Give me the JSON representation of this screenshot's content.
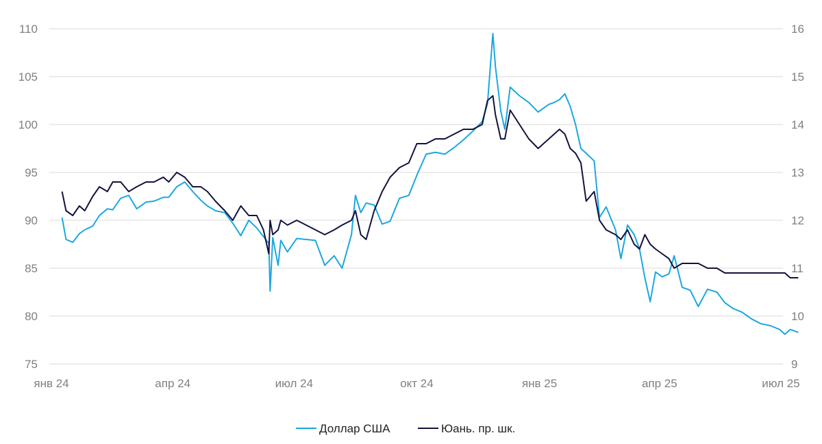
{
  "chart_data": {
    "type": "line",
    "title": "",
    "xlabel": "",
    "ylabel": "",
    "x_ticks": [
      "янв 24",
      "апр 24",
      "июл 24",
      "окт 24",
      "янв 25",
      "апр 25",
      "июл 25"
    ],
    "y_left": {
      "min": 75,
      "max": 110,
      "ticks": [
        75,
        80,
        85,
        90,
        95,
        100,
        105,
        110
      ]
    },
    "y_right": {
      "min": 9,
      "max": 16,
      "ticks": [
        9,
        10,
        11,
        12,
        13,
        14,
        15,
        16
      ]
    },
    "grid": true,
    "legend_position": "bottom-center",
    "series": [
      {
        "name": "Доллар США",
        "axis": "left",
        "color": "#1aa7e0",
        "x": [
          "2024-01-09",
          "2024-01-12",
          "2024-01-17",
          "2024-01-22",
          "2024-01-26",
          "2024-02-01",
          "2024-02-06",
          "2024-02-12",
          "2024-02-16",
          "2024-02-22",
          "2024-02-28",
          "2024-03-05",
          "2024-03-12",
          "2024-03-18",
          "2024-03-25",
          "2024-03-29",
          "2024-04-04",
          "2024-04-10",
          "2024-04-16",
          "2024-04-22",
          "2024-04-27",
          "2024-05-03",
          "2024-05-10",
          "2024-05-16",
          "2024-05-22",
          "2024-05-28",
          "2024-06-03",
          "2024-06-08",
          "2024-06-12",
          "2024-06-13",
          "2024-06-15",
          "2024-06-19",
          "2024-06-21",
          "2024-06-26",
          "2024-07-03",
          "2024-07-10",
          "2024-07-17",
          "2024-07-24",
          "2024-07-31",
          "2024-08-06",
          "2024-08-13",
          "2024-08-16",
          "2024-08-20",
          "2024-08-24",
          "2024-08-30",
          "2024-09-05",
          "2024-09-11",
          "2024-09-18",
          "2024-09-25",
          "2024-10-01",
          "2024-10-08",
          "2024-10-15",
          "2024-10-22",
          "2024-10-29",
          "2024-11-05",
          "2024-11-12",
          "2024-11-19",
          "2024-11-23",
          "2024-11-27",
          "2024-11-29",
          "2024-12-03",
          "2024-12-06",
          "2024-12-10",
          "2024-12-17",
          "2024-12-24",
          "2024-12-31",
          "2025-01-08",
          "2025-01-12",
          "2025-01-16",
          "2025-01-20",
          "2025-01-24",
          "2025-01-28",
          "2025-02-01",
          "2025-02-05",
          "2025-02-11",
          "2025-02-15",
          "2025-02-20",
          "2025-02-27",
          "2025-03-03",
          "2025-03-08",
          "2025-03-13",
          "2025-03-17",
          "2025-03-21",
          "2025-03-25",
          "2025-03-29",
          "2025-04-03",
          "2025-04-08",
          "2025-04-12",
          "2025-04-18",
          "2025-04-24",
          "2025-04-30",
          "2025-05-07",
          "2025-05-14",
          "2025-05-20",
          "2025-05-26",
          "2025-06-02",
          "2025-06-09",
          "2025-06-16",
          "2025-06-23",
          "2025-06-30",
          "2025-07-04",
          "2025-07-08",
          "2025-07-14"
        ],
        "y": [
          90.3,
          88.0,
          87.7,
          88.6,
          89.0,
          89.4,
          90.5,
          91.2,
          91.1,
          92.3,
          92.6,
          91.2,
          91.9,
          92.0,
          92.4,
          92.4,
          93.5,
          94.0,
          93.0,
          92.1,
          91.5,
          91.0,
          90.8,
          89.7,
          88.4,
          90.0,
          89.2,
          88.3,
          87.6,
          82.6,
          88.2,
          85.3,
          87.9,
          86.7,
          88.1,
          88.0,
          87.9,
          85.3,
          86.3,
          85.0,
          88.5,
          92.6,
          90.8,
          91.8,
          91.6,
          89.6,
          89.9,
          92.3,
          92.6,
          94.7,
          96.9,
          97.1,
          96.9,
          97.6,
          98.4,
          99.3,
          100.3,
          102.2,
          109.5,
          106.0,
          101.4,
          99.5,
          103.9,
          103.0,
          102.3,
          101.3,
          102.1,
          102.3,
          102.6,
          103.2,
          101.9,
          100.0,
          97.5,
          97.0,
          96.2,
          90.3,
          91.4,
          89.0,
          86.0,
          89.5,
          88.5,
          87.0,
          84.0,
          81.5,
          84.6,
          84.1,
          84.4,
          86.3,
          83.0,
          82.7,
          81.0,
          82.8,
          82.5,
          81.4,
          80.8,
          80.4,
          79.7,
          79.2,
          79.0,
          78.6,
          78.1,
          78.6,
          78.3
        ]
      },
      {
        "name": "Юань. пр. шк.",
        "axis": "right",
        "color": "#12123d",
        "x": [
          "2024-01-09",
          "2024-01-12",
          "2024-01-17",
          "2024-01-22",
          "2024-01-26",
          "2024-02-01",
          "2024-02-06",
          "2024-02-12",
          "2024-02-16",
          "2024-02-22",
          "2024-02-28",
          "2024-03-05",
          "2024-03-12",
          "2024-03-18",
          "2024-03-25",
          "2024-03-29",
          "2024-04-04",
          "2024-04-10",
          "2024-04-16",
          "2024-04-22",
          "2024-04-27",
          "2024-05-03",
          "2024-05-10",
          "2024-05-16",
          "2024-05-22",
          "2024-05-28",
          "2024-06-03",
          "2024-06-08",
          "2024-06-12",
          "2024-06-13",
          "2024-06-15",
          "2024-06-19",
          "2024-06-21",
          "2024-06-26",
          "2024-07-03",
          "2024-07-10",
          "2024-07-17",
          "2024-07-24",
          "2024-07-31",
          "2024-08-06",
          "2024-08-13",
          "2024-08-16",
          "2024-08-20",
          "2024-08-24",
          "2024-08-30",
          "2024-09-05",
          "2024-09-11",
          "2024-09-18",
          "2024-09-25",
          "2024-10-01",
          "2024-10-08",
          "2024-10-15",
          "2024-10-22",
          "2024-10-29",
          "2024-11-05",
          "2024-11-12",
          "2024-11-19",
          "2024-11-23",
          "2024-11-27",
          "2024-11-29",
          "2024-12-03",
          "2024-12-06",
          "2024-12-10",
          "2024-12-17",
          "2024-12-24",
          "2024-12-31",
          "2025-01-08",
          "2025-01-12",
          "2025-01-16",
          "2025-01-20",
          "2025-01-24",
          "2025-01-28",
          "2025-02-01",
          "2025-02-05",
          "2025-02-11",
          "2025-02-15",
          "2025-02-20",
          "2025-02-27",
          "2025-03-03",
          "2025-03-08",
          "2025-03-13",
          "2025-03-17",
          "2025-03-21",
          "2025-03-25",
          "2025-03-29",
          "2025-04-03",
          "2025-04-08",
          "2025-04-12",
          "2025-04-18",
          "2025-04-24",
          "2025-04-30",
          "2025-05-07",
          "2025-05-14",
          "2025-05-20",
          "2025-05-26",
          "2025-06-02",
          "2025-06-09",
          "2025-06-16",
          "2025-06-23",
          "2025-06-30",
          "2025-07-04",
          "2025-07-08",
          "2025-07-14"
        ],
        "y": [
          12.6,
          12.2,
          12.1,
          12.3,
          12.2,
          12.5,
          12.7,
          12.6,
          12.8,
          12.8,
          12.6,
          12.7,
          12.8,
          12.8,
          12.9,
          12.8,
          13.0,
          12.9,
          12.7,
          12.7,
          12.6,
          12.4,
          12.2,
          12.0,
          12.3,
          12.1,
          12.1,
          11.8,
          11.3,
          12.0,
          11.7,
          11.8,
          12.0,
          11.9,
          12.0,
          11.9,
          11.8,
          11.7,
          11.8,
          11.9,
          12.0,
          12.2,
          11.7,
          11.6,
          12.2,
          12.6,
          12.9,
          13.1,
          13.2,
          13.6,
          13.6,
          13.7,
          13.7,
          13.8,
          13.9,
          13.9,
          14.0,
          14.5,
          14.6,
          14.2,
          13.7,
          13.7,
          14.3,
          14.0,
          13.7,
          13.5,
          13.7,
          13.8,
          13.9,
          13.8,
          13.5,
          13.4,
          13.2,
          12.4,
          12.6,
          12.0,
          11.8,
          11.7,
          11.6,
          11.8,
          11.5,
          11.4,
          11.7,
          11.5,
          11.4,
          11.3,
          11.2,
          11.0,
          11.1,
          11.1,
          11.1,
          11.0,
          11.0,
          10.9,
          10.9,
          10.9,
          10.9,
          10.9,
          10.9,
          10.9,
          10.9,
          10.8,
          10.8
        ]
      }
    ]
  }
}
